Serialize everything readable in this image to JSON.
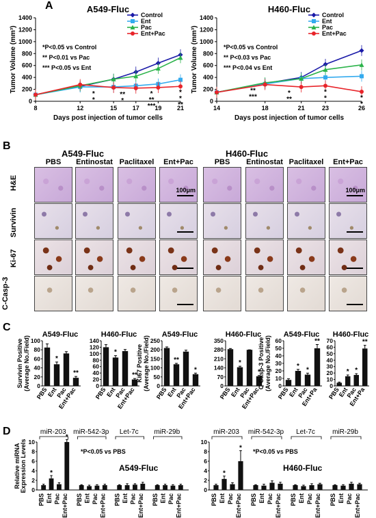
{
  "panels": {
    "a": "A",
    "b": "B",
    "c": "C",
    "d": "D"
  },
  "panel_b": {
    "group_titles": [
      "A549-Fluc",
      "H460-Fluc"
    ],
    "column_labels": [
      "PBS",
      "Entinostat",
      "Paclitaxel",
      "Ent+Pac",
      "PBS",
      "Entinostat",
      "Paclitaxel",
      "Ent+Pac"
    ],
    "row_labels": [
      "H&E",
      "Survivin",
      "Ki-67",
      "C-Casp-3"
    ],
    "scale_label": "100μm"
  },
  "colors": {
    "control": "#1a1aa8",
    "ent": "#33aaee",
    "pac": "#2bb34a",
    "entpac": "#e8242a",
    "bar": "#111111"
  },
  "chart_data": [
    {
      "type": "line",
      "title": "A549-Fluc",
      "xlabel": "Days post injection of tumor cells",
      "ylabel": "Tumor Volume (mm³)",
      "x": [
        8,
        12,
        15,
        17,
        19,
        21
      ],
      "xlim": [
        8,
        21
      ],
      "ylim": [
        0,
        1400
      ],
      "yticks": [
        0,
        200,
        400,
        600,
        800,
        1000,
        1200,
        1400
      ],
      "series": [
        {
          "name": "Control",
          "values": [
            110,
            250,
            370,
            490,
            640,
            780
          ]
        },
        {
          "name": "Ent",
          "values": [
            110,
            240,
            240,
            260,
            290,
            360
          ]
        },
        {
          "name": "Pac",
          "values": [
            110,
            260,
            370,
            420,
            550,
            730
          ]
        },
        {
          "name": "Ent+Pac",
          "values": [
            110,
            280,
            230,
            220,
            230,
            250
          ]
        }
      ],
      "annotations": [
        "*P<0.05 vs Control",
        "** P<0.01 vs Pac",
        "*** P<0.05 vs Ent"
      ],
      "marks": [
        "*",
        "*",
        "**",
        "*",
        "*",
        "**",
        "*",
        "*",
        "**",
        "***"
      ]
    },
    {
      "type": "line",
      "title": "H460-Fluc",
      "xlabel": "Days post injection of tumor cells",
      "ylabel": "Tumor Volume (mm³)",
      "x": [
        14,
        18,
        21,
        23,
        26
      ],
      "xlim": [
        14,
        26
      ],
      "ylim": [
        0,
        1400
      ],
      "yticks": [
        0,
        200,
        400,
        600,
        800,
        1000,
        1200,
        1400
      ],
      "series": [
        {
          "name": "Control",
          "values": [
            150,
            300,
            400,
            620,
            850
          ]
        },
        {
          "name": "Ent",
          "values": [
            150,
            290,
            380,
            400,
            420
          ]
        },
        {
          "name": "Pac",
          "values": [
            150,
            310,
            380,
            530,
            610
          ]
        },
        {
          "name": "Ent+Pac",
          "values": [
            150,
            280,
            240,
            260,
            160
          ]
        }
      ],
      "annotations": [
        "*P<0.05 vs Control",
        "** P<0.03 vs Pac",
        "*** P<0.04 vs Ent"
      ],
      "marks": [
        "*",
        "*",
        "*",
        "**",
        "*",
        "*",
        "**",
        "***"
      ]
    },
    {
      "type": "bar",
      "title": "A549-Fluc",
      "ylabel": "Survivin Positive (Average No./Field)",
      "categories": [
        "PBS",
        "Ent",
        "Pac",
        "Ent+Pac"
      ],
      "values": [
        85,
        48,
        72,
        18
      ],
      "errors": [
        8,
        5,
        4,
        3
      ],
      "ylim": [
        0,
        100
      ],
      "yticks": [
        0,
        20,
        40,
        60,
        80,
        100
      ],
      "marks": [
        "",
        "*",
        "",
        "**"
      ]
    },
    {
      "type": "bar",
      "title": "H460-Fluc",
      "categories": [
        "PBS",
        "Ent",
        "Pac",
        "Ent+Pac"
      ],
      "values": [
        120,
        88,
        108,
        20
      ],
      "errors": [
        8,
        6,
        5,
        3
      ],
      "ylim": [
        0,
        140
      ],
      "yticks": [
        0,
        20,
        40,
        60,
        80,
        100,
        120,
        140
      ],
      "marks": [
        "",
        "*",
        "",
        "**"
      ]
    },
    {
      "type": "bar",
      "title": "A549-Fluc",
      "ylabel": "Ki67 Positive (Average No./Field)",
      "categories": [
        "PBS",
        "Ent",
        "Pac",
        "Ent+Pac"
      ],
      "values": [
        210,
        120,
        190,
        65
      ],
      "errors": [
        6,
        5,
        8,
        6
      ],
      "ylim": [
        0,
        250
      ],
      "yticks": [
        0,
        50,
        100,
        150,
        200,
        250
      ],
      "marks": [
        "",
        "**",
        "",
        "*"
      ]
    },
    {
      "type": "bar",
      "title": "H460-Fluc",
      "categories": [
        "PBS",
        "Ent",
        "Pac",
        "Ent+Pac"
      ],
      "values": [
        285,
        145,
        280,
        75
      ],
      "errors": [
        5,
        8,
        0,
        6
      ],
      "ylim": [
        0,
        350
      ],
      "yticks": [
        0,
        70,
        140,
        210,
        280,
        350
      ],
      "marks": [
        "",
        "*",
        "",
        "*"
      ]
    },
    {
      "type": "bar",
      "title": "A549-Fluc",
      "ylabel": "C-Casp-3 Positive (Average No./Field)",
      "categories": [
        "PBS",
        "Ent",
        "Pac",
        "Ent+Pa"
      ],
      "values": [
        8,
        20,
        15,
        50
      ],
      "errors": [
        1.5,
        2,
        2,
        5
      ],
      "ylim": [
        0,
        60
      ],
      "yticks": [
        0,
        10,
        20,
        30,
        40,
        50,
        60
      ],
      "marks": [
        "",
        "*",
        "*",
        "**"
      ]
    },
    {
      "type": "bar",
      "title": "H460-Fluc",
      "categories": [
        "PBS",
        "Ent",
        "Pac",
        "Ent+Pa"
      ],
      "values": [
        5,
        15,
        17,
        58
      ],
      "errors": [
        1,
        2,
        2,
        5
      ],
      "ylim": [
        0,
        70
      ],
      "yticks": [
        0,
        10,
        20,
        30,
        40,
        50,
        60,
        70
      ],
      "marks": [
        "",
        "*",
        "*",
        "**"
      ]
    },
    {
      "type": "bar",
      "title": "A549-Fluc",
      "ylabel": "Relative miRNA Expression Levels",
      "groups": [
        "miR-203",
        "miR-542-3p",
        "Let-7c",
        "miR-29b"
      ],
      "categories": [
        "PBS",
        "Ent",
        "Pac",
        "Ent+Pac"
      ],
      "values": [
        [
          1,
          2.4,
          1.2,
          10
        ],
        [
          1,
          0.8,
          0.9,
          1.0
        ],
        [
          1,
          1.0,
          1.1,
          1.3
        ],
        [
          1,
          1.0,
          0.9,
          1.0
        ]
      ],
      "errors": [
        [
          0.2,
          0.6,
          0.3,
          0.5
        ],
        [
          0.1,
          0.2,
          0.2,
          0.2
        ],
        [
          0.1,
          0.3,
          0.2,
          0.3
        ],
        [
          0.1,
          0.2,
          0.2,
          0.2
        ]
      ],
      "ylim": [
        0,
        10
      ],
      "yticks": [
        0,
        2,
        4,
        6,
        8,
        10
      ],
      "annotations": [
        "*P<0.05 vs PBS"
      ],
      "group_marks": [
        [
          "",
          "*",
          "",
          "*"
        ],
        [
          "",
          "",
          "",
          ""
        ],
        [
          "",
          "",
          "",
          ""
        ],
        [
          "",
          "",
          "",
          ""
        ]
      ]
    },
    {
      "type": "bar",
      "title": "H460-Fluc",
      "groups": [
        "miR-203",
        "miR-542-3p",
        "Let-7c",
        "miR-29b"
      ],
      "categories": [
        "PBS",
        "Ent",
        "Pac",
        "Ent+Pac"
      ],
      "values": [
        [
          1,
          2.3,
          1.2,
          6
        ],
        [
          1,
          0.9,
          1.5,
          1.3
        ],
        [
          1,
          0.8,
          1.0,
          1.2
        ],
        [
          1,
          0.9,
          1.3,
          1.2
        ]
      ],
      "errors": [
        [
          0.2,
          0.6,
          0.3,
          2.2
        ],
        [
          0.1,
          0.3,
          0.4,
          0.3
        ],
        [
          0.1,
          0.2,
          0.3,
          0.2
        ],
        [
          0.1,
          0.2,
          0.3,
          0.2
        ]
      ],
      "ylim": [
        0,
        10
      ],
      "yticks": [
        0,
        2,
        4,
        6,
        8,
        10
      ],
      "annotations": [
        "*P<0.05 vs PBS"
      ],
      "group_marks": [
        [
          "",
          "*",
          "",
          "*"
        ],
        [
          "",
          "",
          "",
          ""
        ],
        [
          "",
          "",
          "",
          ""
        ],
        [
          "",
          "",
          "",
          ""
        ]
      ]
    }
  ]
}
